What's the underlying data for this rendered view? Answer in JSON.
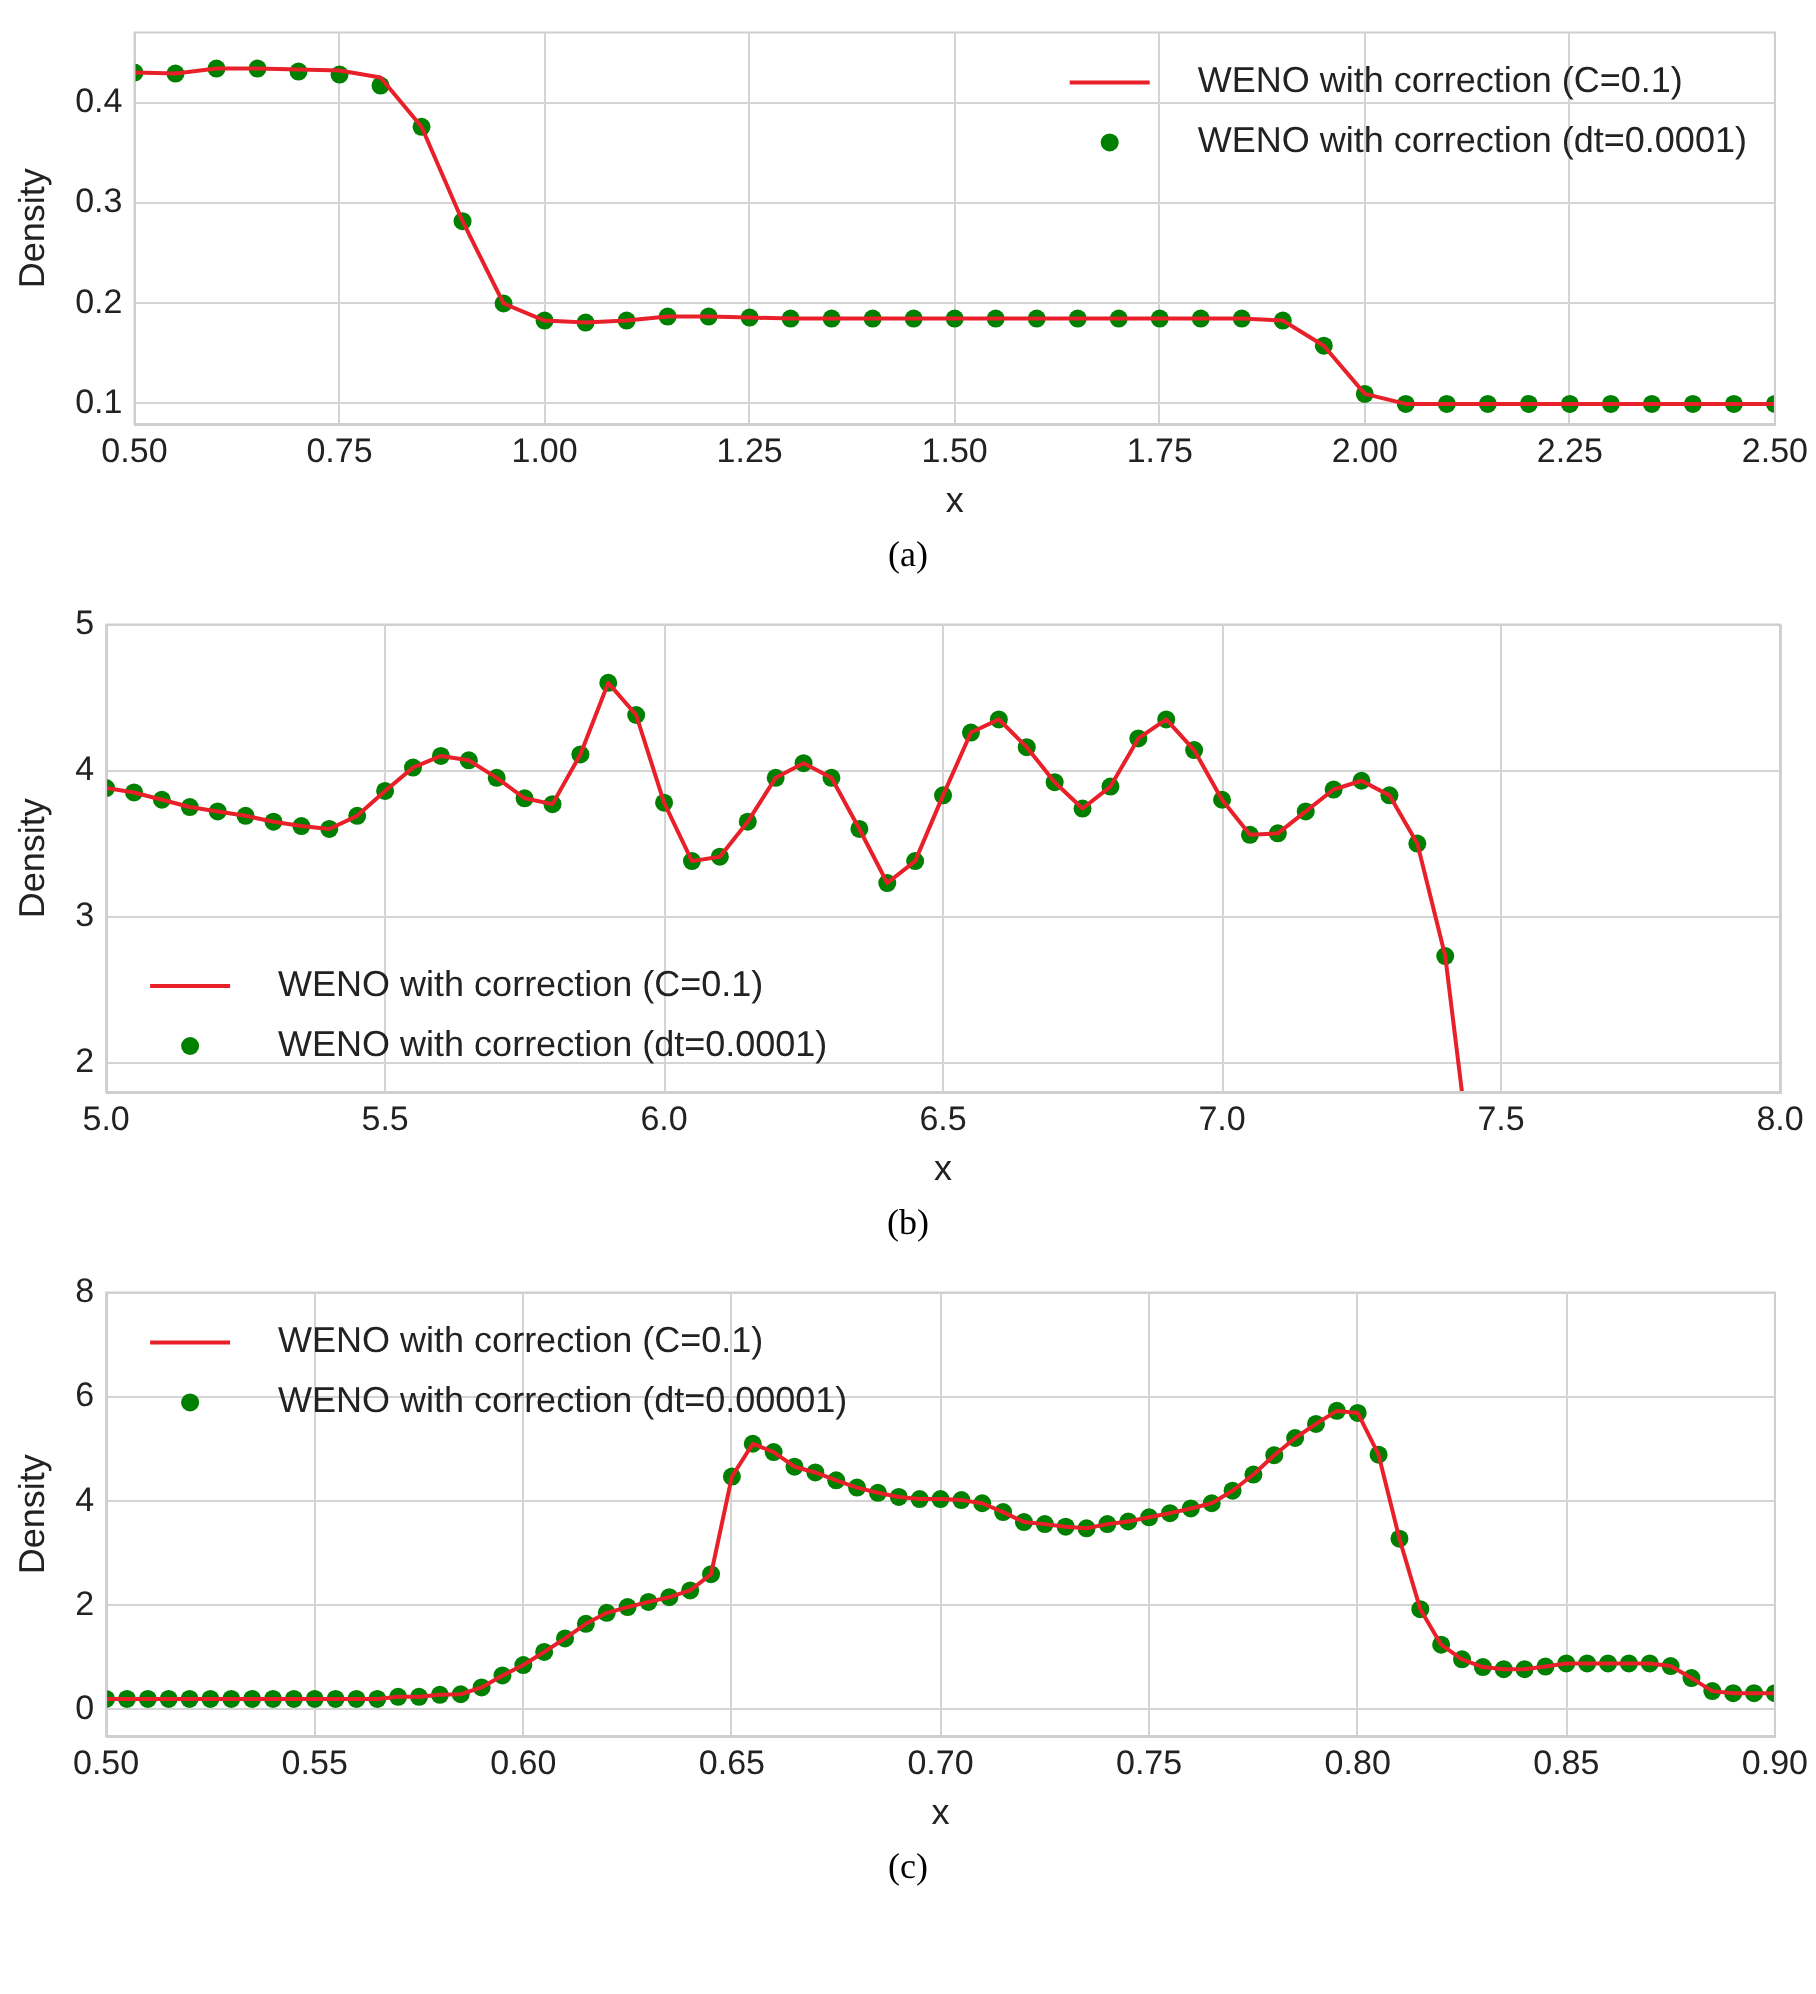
{
  "chart_data": [
    {
      "type": "line",
      "xlabel": "x",
      "ylabel": "Density",
      "xlim": [
        0.5,
        2.5
      ],
      "ylim": [
        0.08,
        0.47
      ],
      "xticks": [
        {
          "value": 0.5,
          "label": "0.50"
        },
        {
          "value": 0.75,
          "label": "0.75"
        },
        {
          "value": 1,
          "label": "1.00"
        },
        {
          "value": 1.25,
          "label": "1.25"
        },
        {
          "value": 1.5,
          "label": "1.50"
        },
        {
          "value": 1.75,
          "label": "1.75"
        },
        {
          "value": 2,
          "label": "2.00"
        },
        {
          "value": 2.25,
          "label": "2.25"
        },
        {
          "value": 2.5,
          "label": "2.50"
        }
      ],
      "yticks": [
        0.1,
        0.2,
        0.3,
        0.4
      ],
      "grid": true,
      "legend": "top right",
      "annotations": [
        "(a)"
      ],
      "series": [
        {
          "name": "WENO with correction (C=0.1)",
          "type": "line",
          "color": "#e8202a",
          "marker": "none",
          "x": [
            0.5,
            0.55,
            0.6,
            0.65,
            0.7,
            0.75,
            0.8,
            0.85,
            0.9,
            0.95,
            1.0,
            1.05,
            1.1,
            1.15,
            1.2,
            1.25,
            1.3,
            1.35,
            1.4,
            1.45,
            1.5,
            1.55,
            1.6,
            1.65,
            1.7,
            1.75,
            1.8,
            1.85,
            1.9,
            1.95,
            2.0,
            2.05,
            2.1,
            2.15,
            2.2,
            2.25,
            2.3,
            2.35,
            2.4,
            2.45,
            2.5
          ],
          "values": [
            0.43,
            0.429,
            0.434,
            0.434,
            0.433,
            0.432,
            0.425,
            0.376,
            0.282,
            0.2,
            0.183,
            0.181,
            0.183,
            0.187,
            0.187,
            0.186,
            0.185,
            0.185,
            0.185,
            0.185,
            0.185,
            0.185,
            0.185,
            0.185,
            0.185,
            0.185,
            0.185,
            0.185,
            0.183,
            0.158,
            0.11,
            0.1,
            0.1,
            0.1,
            0.1,
            0.1,
            0.1,
            0.1,
            0.1,
            0.1,
            0.1
          ]
        },
        {
          "name": "WENO with correction (dt=0.0001)",
          "type": "scatter",
          "color": "#008000",
          "marker": "circle",
          "x": [
            0.5,
            0.55,
            0.6,
            0.65,
            0.7,
            0.75,
            0.8,
            0.85,
            0.9,
            0.95,
            1.0,
            1.05,
            1.1,
            1.15,
            1.2,
            1.25,
            1.3,
            1.35,
            1.4,
            1.45,
            1.5,
            1.55,
            1.6,
            1.65,
            1.7,
            1.75,
            1.8,
            1.85,
            1.9,
            1.95,
            2.0,
            2.05,
            2.1,
            2.15,
            2.2,
            2.25,
            2.3,
            2.35,
            2.4,
            2.45,
            2.5
          ],
          "values": [
            0.43,
            0.429,
            0.434,
            0.434,
            0.431,
            0.428,
            0.417,
            0.376,
            0.282,
            0.2,
            0.183,
            0.181,
            0.183,
            0.187,
            0.187,
            0.186,
            0.185,
            0.185,
            0.185,
            0.185,
            0.185,
            0.185,
            0.185,
            0.185,
            0.185,
            0.185,
            0.185,
            0.185,
            0.183,
            0.158,
            0.11,
            0.1,
            0.1,
            0.1,
            0.1,
            0.1,
            0.1,
            0.1,
            0.1,
            0.1,
            0.1
          ]
        }
      ]
    },
    {
      "type": "line",
      "xlabel": "x",
      "ylabel": "Density",
      "xlim": [
        5.0,
        8.0
      ],
      "ylim": [
        1.8,
        5.0
      ],
      "xticks": [
        {
          "value": 5,
          "label": "5.0"
        },
        {
          "value": 5.5,
          "label": "5.5"
        },
        {
          "value": 6,
          "label": "6.0"
        },
        {
          "value": 6.5,
          "label": "6.5"
        },
        {
          "value": 7,
          "label": "7.0"
        },
        {
          "value": 7.5,
          "label": "7.5"
        },
        {
          "value": 8,
          "label": "8.0"
        }
      ],
      "yticks": [
        2,
        3,
        4,
        5
      ],
      "grid": true,
      "legend": "bottom left",
      "annotations": [
        "(b)"
      ],
      "series": [
        {
          "name": "WENO with correction (C=0.1)",
          "type": "line",
          "color": "#e8202a",
          "marker": "none",
          "x": [
            5.0,
            5.05,
            5.1,
            5.15,
            5.2,
            5.25,
            5.3,
            5.35,
            5.4,
            5.45,
            5.5,
            5.55,
            5.6,
            5.65,
            5.7,
            5.75,
            5.8,
            5.85,
            5.9,
            5.95,
            6.0,
            6.05,
            6.1,
            6.15,
            6.2,
            6.25,
            6.3,
            6.35,
            6.4,
            6.45,
            6.5,
            6.55,
            6.6,
            6.65,
            6.7,
            6.75,
            6.8,
            6.85,
            6.9,
            6.95,
            7.0,
            7.05,
            7.1,
            7.15,
            7.2,
            7.25,
            7.3,
            7.35,
            7.4,
            7.43
          ],
          "values": [
            3.88,
            3.85,
            3.8,
            3.75,
            3.72,
            3.69,
            3.65,
            3.62,
            3.6,
            3.69,
            3.86,
            4.02,
            4.1,
            4.07,
            3.95,
            3.81,
            3.77,
            4.11,
            4.6,
            4.38,
            3.78,
            3.38,
            3.41,
            3.65,
            3.95,
            4.05,
            3.95,
            3.6,
            3.23,
            3.38,
            3.83,
            4.26,
            4.35,
            4.16,
            3.92,
            3.74,
            3.89,
            4.22,
            4.35,
            4.14,
            3.8,
            3.56,
            3.57,
            3.72,
            3.87,
            3.93,
            3.83,
            3.5,
            2.73,
            1.8
          ]
        },
        {
          "name": "WENO with correction (dt=0.0001)",
          "type": "scatter",
          "color": "#008000",
          "marker": "circle",
          "x": [
            5.0,
            5.05,
            5.1,
            5.15,
            5.2,
            5.25,
            5.3,
            5.35,
            5.4,
            5.45,
            5.5,
            5.55,
            5.6,
            5.65,
            5.7,
            5.75,
            5.8,
            5.85,
            5.9,
            5.95,
            6.0,
            6.05,
            6.1,
            6.15,
            6.2,
            6.25,
            6.3,
            6.35,
            6.4,
            6.45,
            6.5,
            6.55,
            6.6,
            6.65,
            6.7,
            6.75,
            6.8,
            6.85,
            6.9,
            6.95,
            7.0,
            7.05,
            7.1,
            7.15,
            7.2,
            7.25,
            7.3,
            7.35,
            7.4
          ],
          "values": [
            3.88,
            3.85,
            3.8,
            3.75,
            3.72,
            3.69,
            3.65,
            3.62,
            3.6,
            3.69,
            3.86,
            4.02,
            4.1,
            4.07,
            3.95,
            3.81,
            3.77,
            4.11,
            4.6,
            4.38,
            3.78,
            3.38,
            3.41,
            3.65,
            3.95,
            4.05,
            3.95,
            3.6,
            3.23,
            3.38,
            3.83,
            4.26,
            4.35,
            4.16,
            3.92,
            3.74,
            3.89,
            4.22,
            4.35,
            4.14,
            3.8,
            3.56,
            3.57,
            3.72,
            3.87,
            3.93,
            3.83,
            3.5,
            2.73
          ]
        }
      ]
    },
    {
      "type": "line",
      "xlabel": "x",
      "ylabel": "Density",
      "xlim": [
        0.5,
        0.9
      ],
      "ylim": [
        -0.5,
        8
      ],
      "xticks": [
        {
          "value": 0.5,
          "label": "0.50"
        },
        {
          "value": 0.55,
          "label": "0.55"
        },
        {
          "value": 0.6,
          "label": "0.60"
        },
        {
          "value": 0.65,
          "label": "0.65"
        },
        {
          "value": 0.7,
          "label": "0.70"
        },
        {
          "value": 0.75,
          "label": "0.75"
        },
        {
          "value": 0.8,
          "label": "0.80"
        },
        {
          "value": 0.85,
          "label": "0.85"
        },
        {
          "value": 0.9,
          "label": "0.90"
        }
      ],
      "yticks": [
        0,
        2,
        4,
        6,
        8
      ],
      "grid": true,
      "legend": "top left",
      "annotations": [
        "(c)"
      ],
      "series": [
        {
          "name": "WENO with correction (C=0.1)",
          "type": "line",
          "color": "#e8202a",
          "marker": "none",
          "x": [
            0.5,
            0.505,
            0.51,
            0.515,
            0.52,
            0.525,
            0.53,
            0.535,
            0.54,
            0.545,
            0.55,
            0.555,
            0.56,
            0.565,
            0.57,
            0.575,
            0.58,
            0.585,
            0.59,
            0.595,
            0.6,
            0.605,
            0.61,
            0.615,
            0.62,
            0.625,
            0.63,
            0.635,
            0.64,
            0.645,
            0.65,
            0.655,
            0.66,
            0.665,
            0.67,
            0.675,
            0.68,
            0.685,
            0.69,
            0.695,
            0.7,
            0.705,
            0.71,
            0.715,
            0.72,
            0.725,
            0.73,
            0.735,
            0.74,
            0.745,
            0.75,
            0.755,
            0.76,
            0.765,
            0.77,
            0.775,
            0.78,
            0.785,
            0.79,
            0.795,
            0.8,
            0.805,
            0.81,
            0.815,
            0.82,
            0.825,
            0.83,
            0.835,
            0.84,
            0.845,
            0.85,
            0.855,
            0.86,
            0.865,
            0.87,
            0.875,
            0.88,
            0.885,
            0.89,
            0.895,
            0.9
          ],
          "values": [
            0.21,
            0.21,
            0.21,
            0.21,
            0.21,
            0.21,
            0.21,
            0.21,
            0.21,
            0.21,
            0.21,
            0.21,
            0.21,
            0.21,
            0.25,
            0.25,
            0.29,
            0.3,
            0.43,
            0.66,
            0.86,
            1.11,
            1.37,
            1.65,
            1.86,
            1.97,
            2.07,
            2.16,
            2.29,
            2.6,
            4.47,
            5.1,
            4.94,
            4.66,
            4.55,
            4.4,
            4.26,
            4.16,
            4.08,
            4.04,
            4.04,
            4.02,
            3.96,
            3.79,
            3.6,
            3.56,
            3.51,
            3.48,
            3.56,
            3.61,
            3.69,
            3.77,
            3.86,
            3.96,
            4.2,
            4.51,
            4.88,
            5.21,
            5.48,
            5.73,
            5.69,
            4.89,
            3.28,
            1.93,
            1.25,
            0.97,
            0.82,
            0.78,
            0.78,
            0.83,
            0.89,
            0.89,
            0.89,
            0.89,
            0.89,
            0.84,
            0.61,
            0.36,
            0.32,
            0.32,
            0.32
          ]
        },
        {
          "name": "WENO with correction (dt=0.00001)",
          "type": "scatter",
          "color": "#008000",
          "marker": "circle",
          "x": [
            0.5,
            0.505,
            0.51,
            0.515,
            0.52,
            0.525,
            0.53,
            0.535,
            0.54,
            0.545,
            0.55,
            0.555,
            0.56,
            0.565,
            0.57,
            0.575,
            0.58,
            0.585,
            0.59,
            0.595,
            0.6,
            0.605,
            0.61,
            0.615,
            0.62,
            0.625,
            0.63,
            0.635,
            0.64,
            0.645,
            0.65,
            0.655,
            0.66,
            0.665,
            0.67,
            0.675,
            0.68,
            0.685,
            0.69,
            0.695,
            0.7,
            0.705,
            0.71,
            0.715,
            0.72,
            0.725,
            0.73,
            0.735,
            0.74,
            0.745,
            0.75,
            0.755,
            0.76,
            0.765,
            0.77,
            0.775,
            0.78,
            0.785,
            0.79,
            0.795,
            0.8,
            0.805,
            0.81,
            0.815,
            0.82,
            0.825,
            0.83,
            0.835,
            0.84,
            0.845,
            0.85,
            0.855,
            0.86,
            0.865,
            0.87,
            0.875,
            0.88,
            0.885,
            0.89,
            0.895,
            0.9
          ],
          "values": [
            0.21,
            0.21,
            0.21,
            0.21,
            0.21,
            0.21,
            0.21,
            0.21,
            0.21,
            0.21,
            0.21,
            0.21,
            0.21,
            0.21,
            0.25,
            0.25,
            0.29,
            0.3,
            0.43,
            0.66,
            0.86,
            1.11,
            1.37,
            1.65,
            1.86,
            1.97,
            2.07,
            2.16,
            2.29,
            2.6,
            4.47,
            5.1,
            4.94,
            4.66,
            4.55,
            4.4,
            4.26,
            4.16,
            4.08,
            4.04,
            4.04,
            4.02,
            3.96,
            3.79,
            3.6,
            3.56,
            3.51,
            3.48,
            3.56,
            3.61,
            3.69,
            3.77,
            3.86,
            3.96,
            4.2,
            4.51,
            4.88,
            5.21,
            5.48,
            5.73,
            5.69,
            4.89,
            3.28,
            1.93,
            1.25,
            0.97,
            0.82,
            0.78,
            0.78,
            0.83,
            0.89,
            0.89,
            0.89,
            0.89,
            0.89,
            0.84,
            0.61,
            0.36,
            0.32,
            0.32,
            0.32
          ]
        }
      ]
    }
  ]
}
